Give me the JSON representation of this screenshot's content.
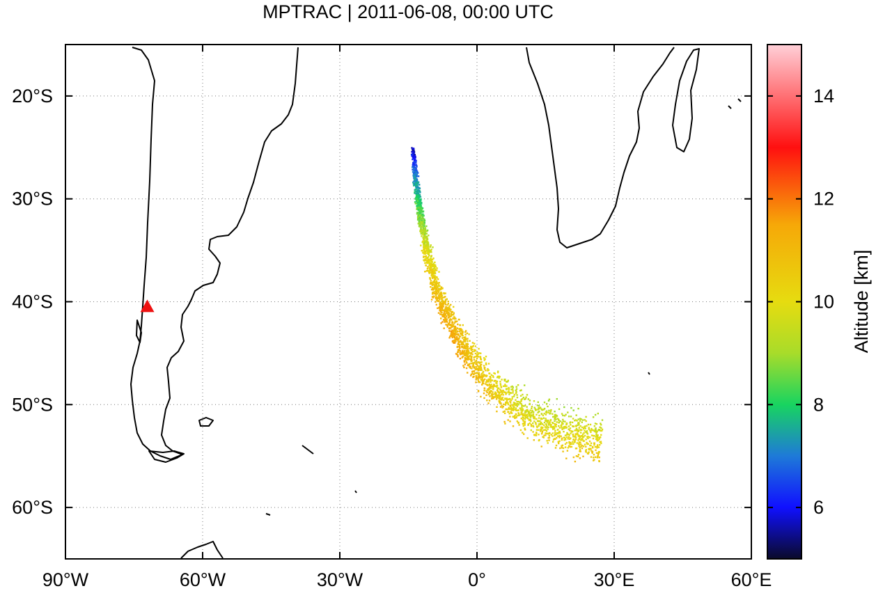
{
  "title": "MPTRAC | 2011-06-08, 00:00 UTC",
  "map": {
    "lon_range": [
      -90,
      60
    ],
    "lat_range": [
      -65,
      -15
    ],
    "x_ticks": [
      {
        "value": -90,
        "label": "90°W"
      },
      {
        "value": -60,
        "label": "60°W"
      },
      {
        "value": -30,
        "label": "30°W"
      },
      {
        "value": 0,
        "label": "0°"
      },
      {
        "value": 30,
        "label": "30°E"
      },
      {
        "value": 60,
        "label": "60°E"
      }
    ],
    "y_ticks": [
      {
        "value": -20,
        "label": "20°S"
      },
      {
        "value": -30,
        "label": "30°S"
      },
      {
        "value": -40,
        "label": "40°S"
      },
      {
        "value": -50,
        "label": "50°S"
      },
      {
        "value": -60,
        "label": "60°S"
      }
    ],
    "grid": "dotted",
    "volcano_marker": {
      "lon": -72.1,
      "lat": -40.6,
      "color": "#ee1111",
      "shape": "triangle"
    },
    "plume_path": [
      {
        "lon": -14.2,
        "lat": -25.0,
        "alt": 5.6
      },
      {
        "lon": -13.6,
        "lat": -28.0,
        "alt": 7.2
      },
      {
        "lon": -12.6,
        "lat": -31.5,
        "alt": 8.6
      },
      {
        "lon": -11.2,
        "lat": -35.0,
        "alt": 9.9
      },
      {
        "lon": -8.8,
        "lat": -39.0,
        "alt": 10.8
      },
      {
        "lon": -5.5,
        "lat": -42.5,
        "alt": 11.2
      },
      {
        "lon": -1.5,
        "lat": -45.5,
        "alt": 10.8
      },
      {
        "lon": 4.0,
        "lat": -48.5,
        "alt": 10.3
      },
      {
        "lon": 11.0,
        "lat": -51.0,
        "alt": 9.8
      },
      {
        "lon": 19.0,
        "lat": -52.5,
        "alt": 9.9
      },
      {
        "lon": 27.0,
        "lat": -53.5,
        "alt": 10.1
      }
    ]
  },
  "colorbar": {
    "label": "Altitude [km]",
    "range": [
      5,
      15
    ],
    "ticks": [
      {
        "value": 6,
        "label": "6"
      },
      {
        "value": 8,
        "label": "8"
      },
      {
        "value": 10,
        "label": "10"
      },
      {
        "value": 12,
        "label": "12"
      },
      {
        "value": 14,
        "label": "14"
      }
    ],
    "stops": [
      "#0a0a2a",
      "#1010ff",
      "#1e7ad8",
      "#18d460",
      "#a8dc2a",
      "#e6dc10",
      "#f6a808",
      "#ff1010",
      "#ffd0d8"
    ]
  }
}
